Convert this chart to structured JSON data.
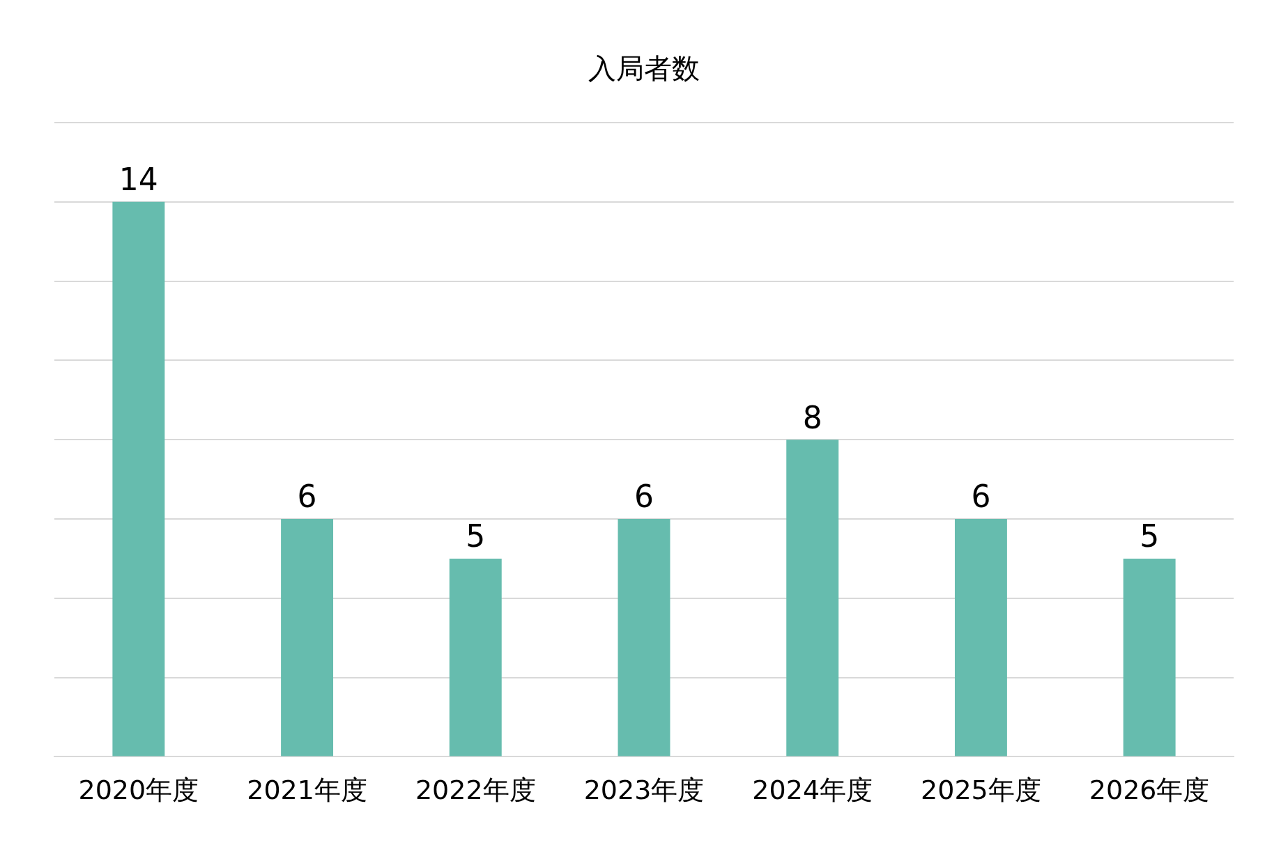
{
  "chart_data": {
    "type": "bar",
    "title": "入局者数",
    "categories": [
      "2020年度",
      "2021年度",
      "2022年度",
      "2023年度",
      "2024年度",
      "2025年度",
      "2026年度"
    ],
    "values": [
      14,
      6,
      5,
      6,
      8,
      6,
      5
    ],
    "color": "#66bcae",
    "ylim": [
      0,
      16
    ],
    "yticks": [
      {
        "value": 0,
        "label": null
      },
      {
        "value": 2,
        "label": null
      },
      {
        "value": 4,
        "label": null
      },
      {
        "value": 6,
        "label": null
      },
      {
        "value": 8,
        "label": null
      },
      {
        "value": 10,
        "label": null
      },
      {
        "value": 12,
        "label": null
      },
      {
        "value": 14,
        "label": null
      },
      {
        "value": 16,
        "label": null
      }
    ],
    "grid": "y",
    "tick_labels": "x",
    "data_labels": true
  }
}
